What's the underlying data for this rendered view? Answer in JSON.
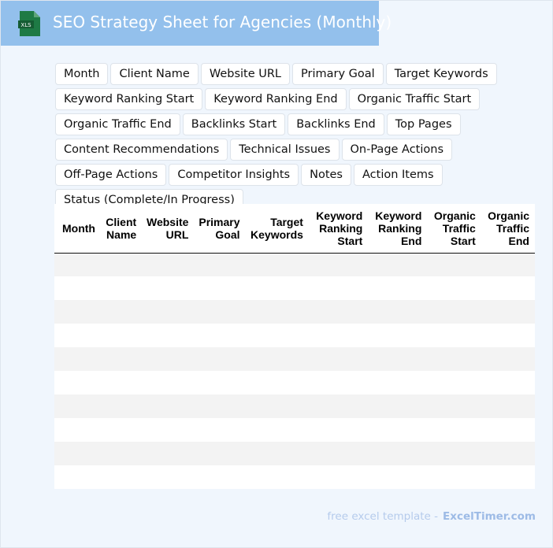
{
  "header": {
    "title": "SEO Strategy Sheet for Agencies (Monthly)",
    "icon": "xls-file-icon",
    "icon_label": "XLS"
  },
  "tags": [
    "Month",
    "Client Name",
    "Website URL",
    "Primary Goal",
    "Target Keywords",
    "Keyword Ranking Start",
    "Keyword Ranking End",
    "Organic Traffic Start",
    "Organic Traffic End",
    "Backlinks Start",
    "Backlinks End",
    "Top Pages",
    "Content Recommendations",
    "Technical Issues",
    "On-Page Actions",
    "Off-Page Actions",
    "Competitor Insights",
    "Notes",
    "Action Items",
    "Status (Complete/In Progress)"
  ],
  "table": {
    "columns": [
      "Month",
      "Client Name",
      "Website URL",
      "Primary Goal",
      "Target Keywords",
      "Keyword Ranking Start",
      "Keyword Ranking End",
      "Organic Traffic Start",
      "Organic Traffic End"
    ],
    "row_count": 10
  },
  "footer": {
    "text": "free excel template -",
    "brand": "ExcelTimer.com"
  },
  "colors": {
    "header": "#93c0ec",
    "icon": "#1e7a45",
    "background": "#f0f6fd"
  }
}
